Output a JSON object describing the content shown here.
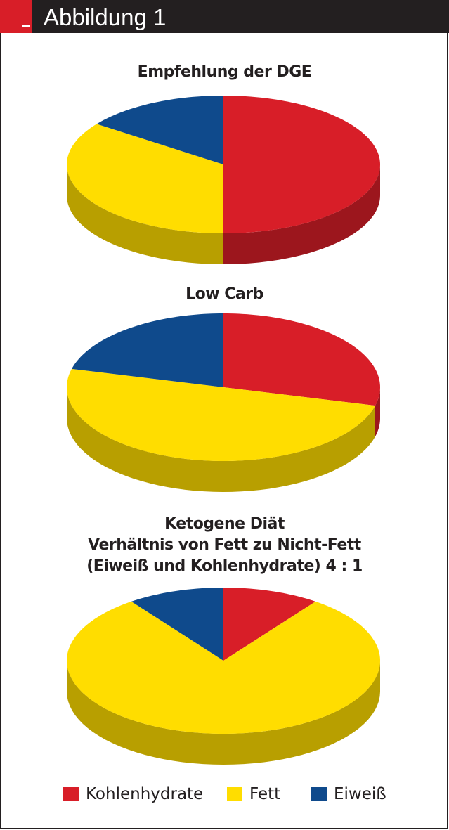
{
  "header": {
    "title": "Abbildung 1"
  },
  "colors": {
    "kohlenhydrate": "#d81e28",
    "fett": "#ffdd00",
    "eiweiss": "#0f4a8c",
    "header_bg": "#231f20"
  },
  "legend": [
    {
      "label": "Kohlenhydrate",
      "color": "#d81e28"
    },
    {
      "label": "Fett",
      "color": "#ffdd00"
    },
    {
      "label": "Eiweiß",
      "color": "#0f4a8c"
    }
  ],
  "chart_data": [
    {
      "type": "pie",
      "style": "3d",
      "title_lines": [
        "Empfehlung der DGE"
      ],
      "slices": [
        {
          "label": "Kohlenhydrate",
          "value": 50,
          "color": "#d81e28"
        },
        {
          "label": "Fett",
          "value": 35,
          "color": "#ffdd00"
        },
        {
          "label": "Eiweiß",
          "value": 15,
          "color": "#0f4a8c"
        }
      ]
    },
    {
      "type": "pie",
      "style": "3d",
      "title_lines": [
        "Low Carb"
      ],
      "slices": [
        {
          "label": "Kohlenhydrate",
          "value": 29,
          "color": "#d81e28"
        },
        {
          "label": "Fett",
          "value": 50,
          "color": "#ffdd00"
        },
        {
          "label": "Eiweiß",
          "value": 21,
          "color": "#0f4a8c"
        }
      ]
    },
    {
      "type": "pie",
      "style": "3d",
      "title_lines": [
        "Ketogene Diät",
        "Verhältnis von Fett zu Nicht-Fett",
        "(Eiweiß und Kohlenhydrate) 4 : 1"
      ],
      "slices": [
        {
          "label": "Kohlenhydrate",
          "value": 10,
          "color": "#d81e28"
        },
        {
          "label": "Fett",
          "value": 80,
          "color": "#ffdd00"
        },
        {
          "label": "Eiweiß",
          "value": 10,
          "color": "#0f4a8c"
        }
      ]
    }
  ]
}
